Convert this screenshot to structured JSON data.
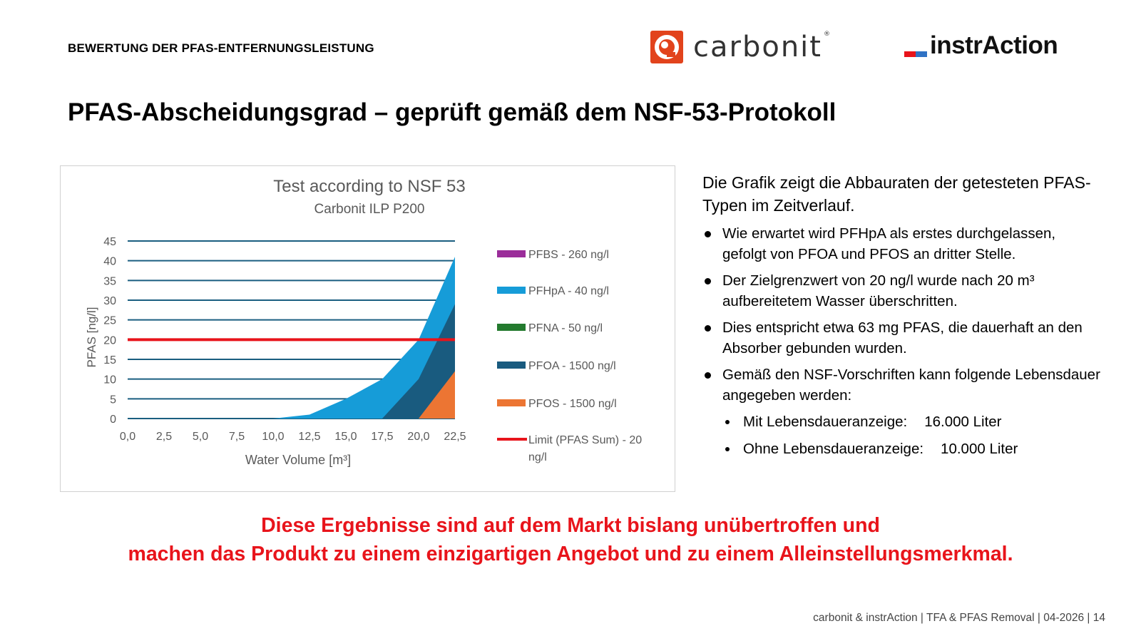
{
  "header": {
    "section_label": "BEWERTUNG DER PFAS-ENTFERNUNGSLEISTUNG",
    "logo_carbonit": "carbonit",
    "logo_carbonit_reg": "®",
    "logo_instraction": "instrAction",
    "colors": {
      "carbonit_orange": "#e2431c",
      "instraction_red": "#e8141b",
      "instraction_blue": "#2f72c4"
    }
  },
  "title": "PFAS-Abscheidungsgrad – geprüft gemäß dem NSF-53-Protokoll",
  "chart_data": {
    "type": "area",
    "title": "Test according to NSF 53",
    "subtitle": "Carbonit ILP P200",
    "xlabel": "Water Volume [m³]",
    "ylabel": "PFAS [ng/l]",
    "x": [
      0,
      2.5,
      5,
      7.5,
      10,
      12.5,
      15,
      17.5,
      20,
      22.5
    ],
    "x_ticks": [
      "0,0",
      "2,5",
      "5,0",
      "7,5",
      "10,0",
      "12,5",
      "15,0",
      "17,5",
      "20,0",
      "22,5"
    ],
    "y_ticks": [
      "0",
      "5",
      "10",
      "15",
      "20",
      "25",
      "30",
      "35",
      "40",
      "45"
    ],
    "xlim": [
      0,
      22.5
    ],
    "ylim": [
      0,
      45
    ],
    "grid": true,
    "legend_position": "right",
    "series": [
      {
        "name": "PFBS - 260 ng/l",
        "color": "#9b2d9a",
        "values": [
          0,
          0,
          0,
          0,
          0,
          0,
          0,
          0,
          0,
          0
        ]
      },
      {
        "name": "PFHpA - 40 ng/l",
        "color": "#169cd8",
        "values": [
          0,
          0,
          0,
          0,
          0,
          1,
          5,
          10,
          20,
          41
        ]
      },
      {
        "name": "PFNA - 50 ng/l",
        "color": "#237a2e",
        "values": [
          0,
          0,
          0,
          0,
          0,
          0,
          0,
          0,
          0,
          0
        ]
      },
      {
        "name": "PFOA - 1500 ng/l",
        "color": "#195b7f",
        "values": [
          0,
          0,
          0,
          0,
          0,
          0,
          0,
          0,
          10,
          29
        ]
      },
      {
        "name": "PFOS - 1500 ng/l",
        "color": "#ec7533",
        "values": [
          0,
          0,
          0,
          0,
          0,
          0,
          0,
          0,
          0,
          12
        ]
      }
    ],
    "limit": {
      "name": "Limit (PFAS Sum) - 20 ng/l",
      "value": 20,
      "color": "#e8141b"
    }
  },
  "description": {
    "intro": "Die Grafik zeigt die Abbauraten der getesteten PFAS-Typen im Zeitverlauf.",
    "bullets": [
      "Wie erwartet wird PFHpA als erstes durchgelassen, gefolgt von PFOA und PFOS an dritter Stelle.",
      "Der Zielgrenzwert von 20 ng/l wurde nach 20 m³ aufbereitetem Wasser überschritten.",
      "Dies entspricht etwa 63 mg PFAS, die dauerhaft an den Absorber gebunden wurden.",
      "Gemäß den NSF-Vorschriften kann folgende Lebensdauer angegeben werden:"
    ],
    "sub_bullets": [
      {
        "label": "Mit Lebensdaueranzeige:",
        "value": "16.000 Liter"
      },
      {
        "label": "Ohne Lebensdaueranzeige:",
        "value": "10.000 Liter"
      }
    ]
  },
  "claim": {
    "line1": "Diese Ergebnisse sind auf dem Markt bislang unübertroffen und",
    "line2": "machen das Produkt zu einem einzigartigen Angebot und zu einem Alleinstellungsmerkmal."
  },
  "footer": "carbonit & instrAction | TFA & PFAS Removal | 04-2026 | 14"
}
